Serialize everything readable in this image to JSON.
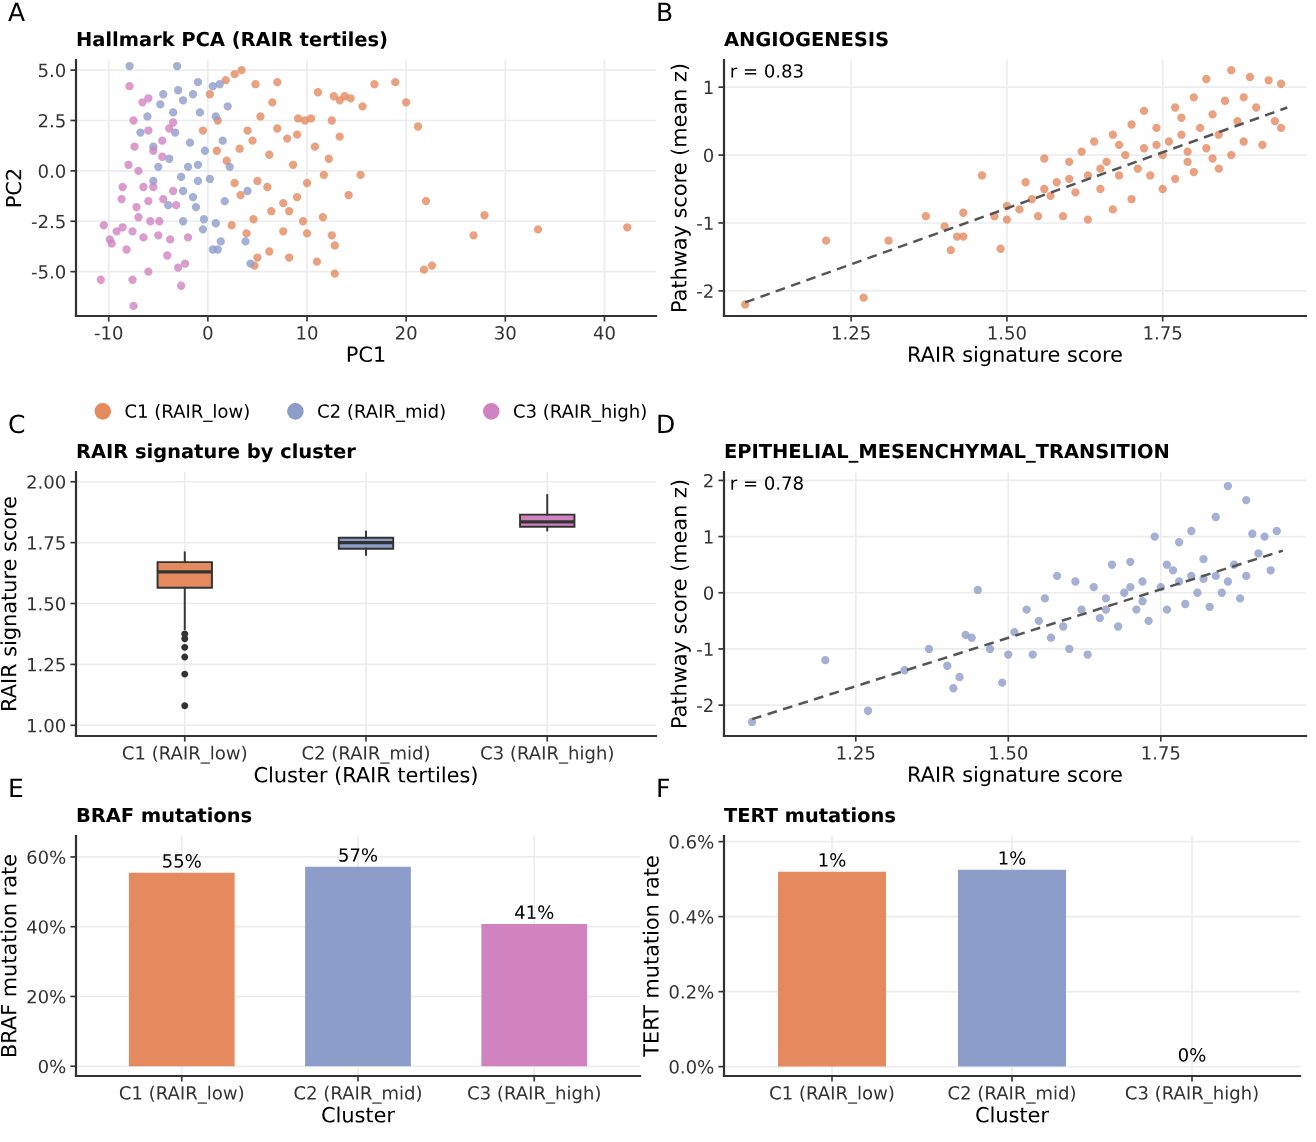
{
  "chart_data": [
    {
      "type": "scatter",
      "title": "Hallmark PCA (RAIR tertiles)",
      "xlabel": "PC1",
      "ylabel": "PC2",
      "annotations": [
        "A"
      ],
      "xlim": [
        -13.3,
        45.2
      ],
      "ylim": [
        -7.2,
        5.5
      ],
      "xticks": [
        -10,
        0,
        10,
        20,
        30,
        40
      ],
      "yticks": [
        {
          "value": -5,
          "label": "-5.0"
        },
        {
          "value": -2.5,
          "label": "-2.5"
        },
        {
          "value": 0,
          "label": "0.0"
        },
        {
          "value": 2.5,
          "label": "2.5"
        },
        {
          "value": 5,
          "label": "5.0"
        }
      ],
      "grid": true,
      "legend": "bottom",
      "series": [
        {
          "name": "C1 (RAIR_low)",
          "marker": "circle",
          "color": "#e5895f",
          "x": [
            42.3,
            33.3,
            27.9,
            26.8,
            22.0,
            21.8,
            22.6,
            21.2,
            20.0,
            18.9,
            16.8,
            15.6,
            15.4,
            14.2,
            14.4,
            13.8,
            13.3,
            12.7,
            11.1,
            12.5,
            12.8,
            12.8,
            12.5,
            11.0,
            11.6,
            10.4,
            9.8,
            9.1,
            9.0,
            8.0,
            7.0,
            6.5,
            7.0,
            4.8,
            3.4,
            2.7,
            1.8,
            4.0,
            6.2,
            8.6,
            10.0,
            9.0,
            8.2,
            7.6,
            6.0,
            5.0,
            4.6,
            3.9,
            5.0,
            4.7,
            6.2,
            8.2,
            9.6,
            10.0,
            2.4,
            1.9,
            0.9,
            3.2,
            2.7,
            4.5,
            10.8,
            12.2,
            13.3,
            11.7,
            7.6,
            3.3,
            1.0,
            0.2,
            -0.5,
            6.4,
            5.3
          ],
          "values": [
            -2.8,
            -2.9,
            -2.2,
            -3.2,
            -1.5,
            -4.9,
            -4.7,
            2.2,
            3.4,
            4.4,
            4.3,
            3.2,
            -0.2,
            -1.2,
            3.6,
            3.7,
            3.5,
            3.7,
            3.9,
            2.5,
            -5.1,
            -3.7,
            -3.2,
            -4.5,
            -2.3,
            2.6,
            2.5,
            2.6,
            1.8,
            1.6,
            2.1,
            3.4,
            4.4,
            4.3,
            5.0,
            4.8,
            4.5,
            2.0,
            0.8,
            0.3,
            -0.6,
            -1.3,
            -2.0,
            -1.6,
            -0.8,
            -0.5,
            -2.4,
            -3.1,
            -4.3,
            -4.7,
            -4.0,
            -4.3,
            -2.5,
            -3.1,
            -2.7,
            0.5,
            1.0,
            1.1,
            -0.6,
            1.5,
            1.2,
            0.6,
            1.7,
            -0.2,
            -3.0,
            -1.2,
            2.5,
            3.8,
            2.0,
            -2.0,
            2.7
          ]
        },
        {
          "name": "C2 (RAIR_mid)",
          "marker": "circle",
          "color": "#8d9dc9",
          "x": [
            -7.9,
            -3.1,
            -1.0,
            0.5,
            1.2,
            -3.0,
            -2.5,
            -4.8,
            -6.1,
            -6.8,
            -5.5,
            -3.9,
            -2.0,
            -1.0,
            0.2,
            -2.5,
            -4.0,
            -1.2,
            -0.4,
            0.8,
            1.3,
            0.5,
            1.0,
            4.3,
            -0.5,
            -2.5,
            1.5,
            0.8,
            -0.8,
            2.0,
            -1.8,
            -3.3,
            -5.0,
            -2.7,
            -1.5,
            3.8,
            4.0,
            2.2,
            -5.5,
            -3.5,
            -1.5,
            -0.3,
            -1.0,
            1.7,
            -4.5
          ],
          "values": [
            5.2,
            5.2,
            4.4,
            4.2,
            4.3,
            4.0,
            3.5,
            3.3,
            2.7,
            1.9,
            1.2,
            0.6,
            0.2,
            -0.5,
            -0.4,
            -1.0,
            -1.7,
            -1.8,
            -2.4,
            -2.6,
            -3.5,
            -3.9,
            -3.9,
            -4.6,
            -2.9,
            -2.5,
            1.5,
            2.7,
            2.9,
            3.2,
            1.4,
            1.9,
            0.2,
            -0.3,
            -1.3,
            -3.5,
            -1.0,
            0.2,
            -0.5,
            2.9,
            3.8,
            1.0,
            0.3,
            -1.5,
            3.8
          ]
        },
        {
          "name": "C3 (RAIR_high)",
          "marker": "circle",
          "color": "#d183c0",
          "x": [
            -10.8,
            -10.5,
            -9.9,
            -9.7,
            -8.6,
            -8.6,
            -8.2,
            -7.6,
            -7.5,
            -7.6,
            -7.9,
            -7.5,
            -6.6,
            -6.0,
            -7.4,
            -8.0,
            -7.0,
            -6.5,
            -6.0,
            -7.2,
            -5.8,
            -4.9,
            -5.0,
            -6.5,
            -6.0,
            -4.1,
            -3.0,
            -2.7,
            -2.3,
            -4.6,
            -3.9,
            -3.5,
            -4.6,
            -6.0,
            -5.5,
            -4.5,
            -3.5,
            -8.7,
            -7.0,
            -9.2,
            -2.0,
            -3.8,
            -3.2,
            -5.5
          ],
          "values": [
            -5.4,
            -2.7,
            -3.4,
            -3.6,
            -0.8,
            -2.8,
            -3.9,
            -5.4,
            -6.7,
            -3.0,
            4.2,
            2.5,
            3.4,
            3.6,
            1.2,
            0.3,
            0.0,
            -0.8,
            -1.5,
            -1.8,
            -2.5,
            -2.5,
            -3.2,
            -3.3,
            -5.0,
            -4.2,
            -4.8,
            -5.7,
            -4.6,
            0.7,
            2.1,
            2.4,
            1.5,
            2.0,
            -0.8,
            -1.4,
            -1.0,
            -1.4,
            -2.3,
            -3.0,
            -3.3,
            -3.4,
            -1.7,
            1.0
          ]
        }
      ]
    },
    {
      "type": "scatter",
      "title": "ANGIOGENESIS",
      "xlabel": "RAIR signature score",
      "ylabel": "Pathway score (mean z)",
      "annotations": [
        "B",
        "r = 0.83"
      ],
      "xlim": [
        1.046,
        1.98
      ],
      "ylim": [
        -2.37,
        1.4
      ],
      "xticks": [
        1.25,
        {
          "value": 1.5,
          "label": "1.50"
        },
        1.75
      ],
      "yticks": [
        -2,
        -1,
        0,
        1
      ],
      "grid": true,
      "series": [
        {
          "marker": "circle",
          "color": "#e5895f",
          "x": [
            1.08,
            1.21,
            1.27,
            1.31,
            1.37,
            1.4,
            1.41,
            1.42,
            1.43,
            1.43,
            1.46,
            1.48,
            1.49,
            1.5,
            1.5,
            1.52,
            1.53,
            1.54,
            1.55,
            1.56,
            1.56,
            1.58,
            1.59,
            1.6,
            1.61,
            1.62,
            1.63,
            1.63,
            1.64,
            1.65,
            1.66,
            1.67,
            1.67,
            1.68,
            1.69,
            1.7,
            1.7,
            1.71,
            1.72,
            1.72,
            1.73,
            1.74,
            1.75,
            1.75,
            1.76,
            1.77,
            1.77,
            1.78,
            1.79,
            1.8,
            1.8,
            1.81,
            1.82,
            1.82,
            1.83,
            1.84,
            1.84,
            1.85,
            1.86,
            1.86,
            1.87,
            1.88,
            1.89,
            1.9,
            1.91,
            1.92,
            1.93,
            1.94,
            1.94,
            1.78,
            1.74,
            1.68,
            1.65,
            1.6,
            1.57,
            1.83,
            1.88,
            1.79
          ],
          "values": [
            -2.2,
            -1.26,
            -2.1,
            -1.26,
            -0.9,
            -1.05,
            -1.4,
            -1.2,
            -1.2,
            -0.85,
            -0.3,
            -0.9,
            -1.38,
            -0.75,
            -0.95,
            -0.8,
            -0.4,
            -0.65,
            -0.9,
            -0.5,
            -0.05,
            -0.4,
            -0.9,
            -0.1,
            -0.55,
            0.05,
            -0.3,
            -0.95,
            0.2,
            -0.5,
            -0.1,
            -0.8,
            0.3,
            -0.3,
            0.0,
            -0.65,
            0.45,
            -0.2,
            0.1,
            0.65,
            -0.3,
            0.4,
            -0.5,
            0.0,
            0.2,
            0.7,
            -0.35,
            0.3,
            0.05,
            0.85,
            -0.25,
            0.4,
            0.1,
            1.12,
            0.6,
            -0.2,
            0.3,
            0.8,
            1.25,
            0.0,
            0.5,
            0.2,
            1.15,
            0.7,
            0.15,
            1.1,
            0.5,
            1.05,
            0.4,
            0.55,
            0.15,
            0.15,
            -0.2,
            -0.35,
            -0.6,
            -0.05,
            0.85,
            -0.1
          ]
        },
        {
          "type": "line",
          "line_style": "dashed",
          "color": "#555555",
          "x": [
            1.08,
            1.95
          ],
          "values": [
            -2.17,
            0.7
          ]
        }
      ]
    },
    {
      "type": "box",
      "title": "RAIR signature by cluster",
      "xlabel": "Cluster (RAIR tertiles)",
      "ylabel": "RAIR signature score",
      "annotations": [
        "C"
      ],
      "categories": [
        "C1 (RAIR_low)",
        "C2 (RAIR_mid)",
        "C3 (RAIR_high)"
      ],
      "colors": [
        "#e5895f",
        "#8d9dc9",
        "#d183c0"
      ],
      "ylim": [
        0.956,
        2.04
      ],
      "yticks": [
        {
          "value": 1,
          "label": "1.00"
        },
        1.25,
        {
          "value": 1.5,
          "label": "1.50"
        },
        1.75,
        {
          "value": 2,
          "label": "2.00"
        }
      ],
      "grid": true,
      "boxes": [
        {
          "low": 1.395,
          "q1": 1.565,
          "median": 1.63,
          "q3": 1.67,
          "high": 1.71,
          "outliers": [
            1.375,
            1.355,
            1.32,
            1.28,
            1.21,
            1.08
          ]
        },
        {
          "low": 1.7,
          "q1": 1.725,
          "median": 1.75,
          "q3": 1.77,
          "high": 1.795
        },
        {
          "low": 1.8,
          "q1": 1.815,
          "median": 1.835,
          "q3": 1.865,
          "high": 1.945
        }
      ]
    },
    {
      "type": "scatter",
      "title": "EPITHELIAL_MESENCHYMAL_TRANSITION",
      "xlabel": "RAIR signature score",
      "ylabel": "Pathway score (mean z)",
      "annotations": [
        "D",
        "r = 0.78"
      ],
      "xlim": [
        1.034,
        1.988
      ],
      "ylim": [
        -2.55,
        2.15
      ],
      "xticks": [
        1.25,
        {
          "value": 1.5,
          "label": "1.50"
        },
        1.75
      ],
      "yticks": [
        -2,
        -1,
        0,
        1,
        2
      ],
      "grid": true,
      "series": [
        {
          "marker": "circle",
          "color": "#8d9dc9",
          "x": [
            1.08,
            1.2,
            1.27,
            1.33,
            1.37,
            1.4,
            1.41,
            1.42,
            1.43,
            1.44,
            1.45,
            1.47,
            1.49,
            1.5,
            1.51,
            1.53,
            1.54,
            1.55,
            1.56,
            1.57,
            1.58,
            1.59,
            1.6,
            1.61,
            1.62,
            1.63,
            1.64,
            1.65,
            1.66,
            1.67,
            1.68,
            1.69,
            1.7,
            1.71,
            1.72,
            1.73,
            1.74,
            1.75,
            1.76,
            1.77,
            1.78,
            1.79,
            1.8,
            1.8,
            1.81,
            1.82,
            1.83,
            1.84,
            1.84,
            1.85,
            1.86,
            1.87,
            1.88,
            1.89,
            1.89,
            1.9,
            1.91,
            1.92,
            1.93,
            1.94,
            1.76,
            1.72,
            1.66,
            1.78,
            1.82,
            1.86,
            1.7
          ],
          "values": [
            -2.3,
            -1.2,
            -2.1,
            -1.38,
            -1.0,
            -1.3,
            -1.7,
            -1.5,
            -0.75,
            -0.8,
            0.05,
            -1.0,
            -1.6,
            -1.1,
            -0.7,
            -0.3,
            -1.1,
            -0.5,
            -0.1,
            -0.8,
            0.3,
            -0.6,
            -1.0,
            0.2,
            -0.3,
            -1.1,
            0.1,
            -0.45,
            -0.1,
            0.5,
            -0.6,
            0.0,
            0.55,
            -0.3,
            0.2,
            -0.5,
            1.0,
            0.1,
            -0.3,
            0.4,
            0.9,
            -0.2,
            0.3,
            1.1,
            0.0,
            0.6,
            -0.25,
            1.35,
            0.3,
            0.0,
            1.9,
            0.5,
            -0.1,
            1.65,
            0.3,
            1.05,
            0.7,
            1.0,
            0.4,
            1.1,
            0.5,
            -0.15,
            -0.3,
            0.2,
            0.25,
            0.2,
            0.1
          ]
        },
        {
          "type": "line",
          "line_style": "dashed",
          "color": "#555555",
          "x": [
            1.08,
            1.95
          ],
          "values": [
            -2.25,
            0.75
          ]
        }
      ]
    },
    {
      "type": "bar",
      "title": "BRAF mutations",
      "xlabel": "Cluster",
      "ylabel": "BRAF mutation rate",
      "annotations": [
        "E"
      ],
      "categories": [
        "C1 (RAIR_low)",
        "C2 (RAIR_mid)",
        "C3 (RAIR_high)"
      ],
      "values": [
        55.5,
        57.2,
        40.8
      ],
      "value_labels": [
        "55%",
        "57%",
        "41%"
      ],
      "colors": [
        "#e5895f",
        "#8d9dc9",
        "#d183c0"
      ],
      "ylim": [
        -2.8,
        66
      ],
      "yticks": [
        {
          "value": 0,
          "label": "0%"
        },
        {
          "value": 20,
          "label": "20%"
        },
        {
          "value": 40,
          "label": "40%"
        },
        {
          "value": 60,
          "label": "60%"
        }
      ],
      "grid": true
    },
    {
      "type": "bar",
      "title": "TERT mutations",
      "xlabel": "Cluster",
      "ylabel": "TERT mutation rate",
      "annotations": [
        "F"
      ],
      "categories": [
        "C1 (RAIR_low)",
        "C2 (RAIR_mid)",
        "C3 (RAIR_high)"
      ],
      "values": [
        0.52,
        0.525,
        0
      ],
      "value_labels": [
        "1%",
        "1%",
        "0%"
      ],
      "colors": [
        "#e5895f",
        "#8d9dc9",
        "#d183c0"
      ],
      "ylim": [
        -0.025,
        0.615
      ],
      "yticks": [
        {
          "value": 0,
          "label": "0.0%"
        },
        {
          "value": 0.2,
          "label": "0.2%"
        },
        {
          "value": 0.4,
          "label": "0.4%"
        },
        {
          "value": 0.6,
          "label": "0.6%"
        }
      ],
      "grid": true
    }
  ]
}
